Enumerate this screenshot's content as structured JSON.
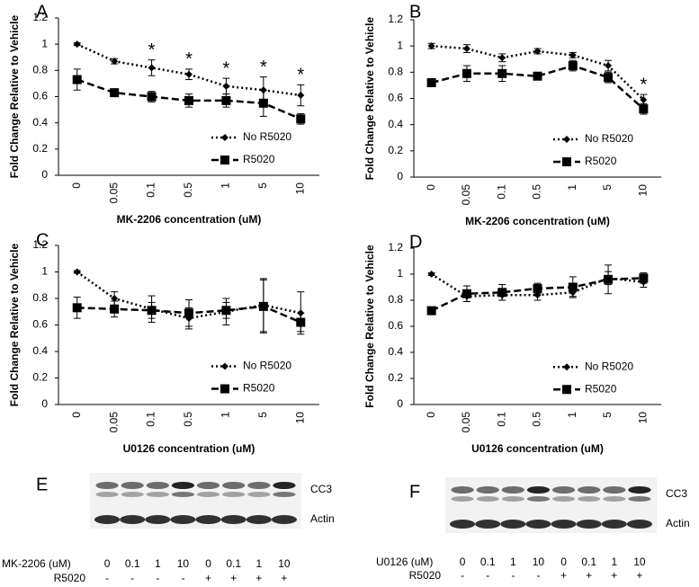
{
  "chart_data": [
    {
      "type": "line",
      "panel": "A",
      "xlabel": "MK-2206 concentration (uM)",
      "ylabel": "Fold Change Relative to Vehicle",
      "categories": [
        "0",
        "0.05",
        "0.1",
        "0.5",
        "1",
        "5",
        "10"
      ],
      "ylim": [
        0,
        1.2
      ],
      "yticks": [
        0,
        0.2,
        0.4,
        0.6,
        0.8,
        1,
        1.2
      ],
      "legend": "lower right",
      "series": [
        {
          "name": "No R5020",
          "color": "#000000",
          "dash": "dotted",
          "marker": "diamond",
          "values": [
            1.0,
            0.87,
            0.82,
            0.77,
            0.68,
            0.65,
            0.61
          ],
          "errors": [
            0.01,
            0.02,
            0.06,
            0.04,
            0.06,
            0.1,
            0.08
          ]
        },
        {
          "name": "R5020",
          "color": "#000000",
          "dash": "dashed",
          "marker": "square",
          "values": [
            0.73,
            0.63,
            0.6,
            0.57,
            0.57,
            0.55,
            0.43
          ],
          "errors": [
            0.08,
            0.02,
            0.04,
            0.05,
            0.05,
            0.1,
            0.04
          ]
        }
      ],
      "significance": [
        null,
        null,
        "*",
        "*",
        "*",
        "*",
        "*"
      ]
    },
    {
      "type": "line",
      "panel": "B",
      "xlabel": "MK-2206 concentration (uM)",
      "ylabel": "Fold Change Relative to Vehicle",
      "categories": [
        "0",
        "0.05",
        "0.1",
        "0.5",
        "1",
        "5",
        "10"
      ],
      "ylim": [
        0,
        1.2
      ],
      "yticks": [
        0,
        0.2,
        0.4,
        0.6,
        0.8,
        1,
        1.2
      ],
      "legend": "lower right",
      "series": [
        {
          "name": "No R5020",
          "color": "#000000",
          "dash": "dotted",
          "marker": "diamond",
          "values": [
            1.0,
            0.98,
            0.91,
            0.96,
            0.93,
            0.85,
            0.59
          ],
          "errors": [
            0.02,
            0.03,
            0.03,
            0.02,
            0.02,
            0.04,
            0.04
          ]
        },
        {
          "name": "R5020",
          "color": "#000000",
          "dash": "dashed",
          "marker": "square",
          "values": [
            0.72,
            0.79,
            0.79,
            0.77,
            0.85,
            0.76,
            0.52
          ],
          "errors": [
            0.02,
            0.06,
            0.06,
            0.02,
            0.04,
            0.04,
            0.04
          ]
        }
      ],
      "significance": [
        null,
        null,
        null,
        null,
        null,
        null,
        "*"
      ]
    },
    {
      "type": "line",
      "panel": "C",
      "xlabel": "U0126 concentration (uM)",
      "ylabel": "Fold Change Relative to Vehicle",
      "categories": [
        "0",
        "0.05",
        "0.1",
        "0.5",
        "1",
        "5",
        "10"
      ],
      "ylim": [
        0,
        1.2
      ],
      "yticks": [
        0,
        0.2,
        0.4,
        0.6,
        0.8,
        1,
        1.2
      ],
      "legend": "lower right",
      "series": [
        {
          "name": "No R5020",
          "color": "#000000",
          "dash": "dotted",
          "marker": "diamond",
          "values": [
            1.0,
            0.8,
            0.72,
            0.65,
            0.7,
            0.75,
            0.69
          ],
          "errors": [
            0.01,
            0.05,
            0.1,
            0.08,
            0.1,
            0.2,
            0.16
          ]
        },
        {
          "name": "R5020",
          "color": "#000000",
          "dash": "dashed",
          "marker": "square",
          "values": [
            0.73,
            0.72,
            0.71,
            0.69,
            0.71,
            0.74,
            0.62
          ],
          "errors": [
            0.08,
            0.06,
            0.06,
            0.1,
            0.06,
            0.2,
            0.07
          ]
        }
      ]
    },
    {
      "type": "line",
      "panel": "D",
      "xlabel": "U0126 concentration (uM)",
      "ylabel": "Fold Change Relative to Vehicle",
      "categories": [
        "0",
        "0.05",
        "0.1",
        "0.5",
        "1",
        "5",
        "10"
      ],
      "ylim": [
        0,
        1.2
      ],
      "yticks": [
        0,
        0.2,
        0.4,
        0.6,
        0.8,
        1,
        1.2
      ],
      "legend": "lower right",
      "series": [
        {
          "name": "No R5020",
          "color": "#000000",
          "dash": "dotted",
          "marker": "diamond",
          "values": [
            1.0,
            0.83,
            0.84,
            0.84,
            0.86,
            0.97,
            0.94
          ],
          "errors": [
            0.01,
            0.04,
            0.04,
            0.04,
            0.03,
            0.05,
            0.04
          ]
        },
        {
          "name": "R5020",
          "color": "#000000",
          "dash": "dashed",
          "marker": "square",
          "values": [
            0.72,
            0.85,
            0.86,
            0.89,
            0.9,
            0.96,
            0.97
          ],
          "errors": [
            0.01,
            0.06,
            0.06,
            0.04,
            0.08,
            0.11,
            0.04
          ]
        }
      ]
    }
  ],
  "blots": [
    {
      "panel": "E",
      "bands": [
        "CC3",
        "Actin"
      ],
      "treatment": "MK-2206 (uM)",
      "doses": [
        "0",
        "0.1",
        "1",
        "10",
        "0",
        "0.1",
        "1",
        "10"
      ],
      "hormone": "R5020",
      "hormone_signs": [
        "-",
        "-",
        "-",
        "-",
        "+",
        "+",
        "+",
        "+"
      ]
    },
    {
      "panel": "F",
      "bands": [
        "CC3",
        "Actin"
      ],
      "treatment": "U0126 (uM)",
      "doses": [
        "0",
        "0.1",
        "1",
        "10",
        "0",
        "0.1",
        "1",
        "10"
      ],
      "hormone": "R5020",
      "hormone_signs": [
        "-",
        "-",
        "-",
        "-",
        "+",
        "+",
        "+",
        "+"
      ]
    }
  ]
}
